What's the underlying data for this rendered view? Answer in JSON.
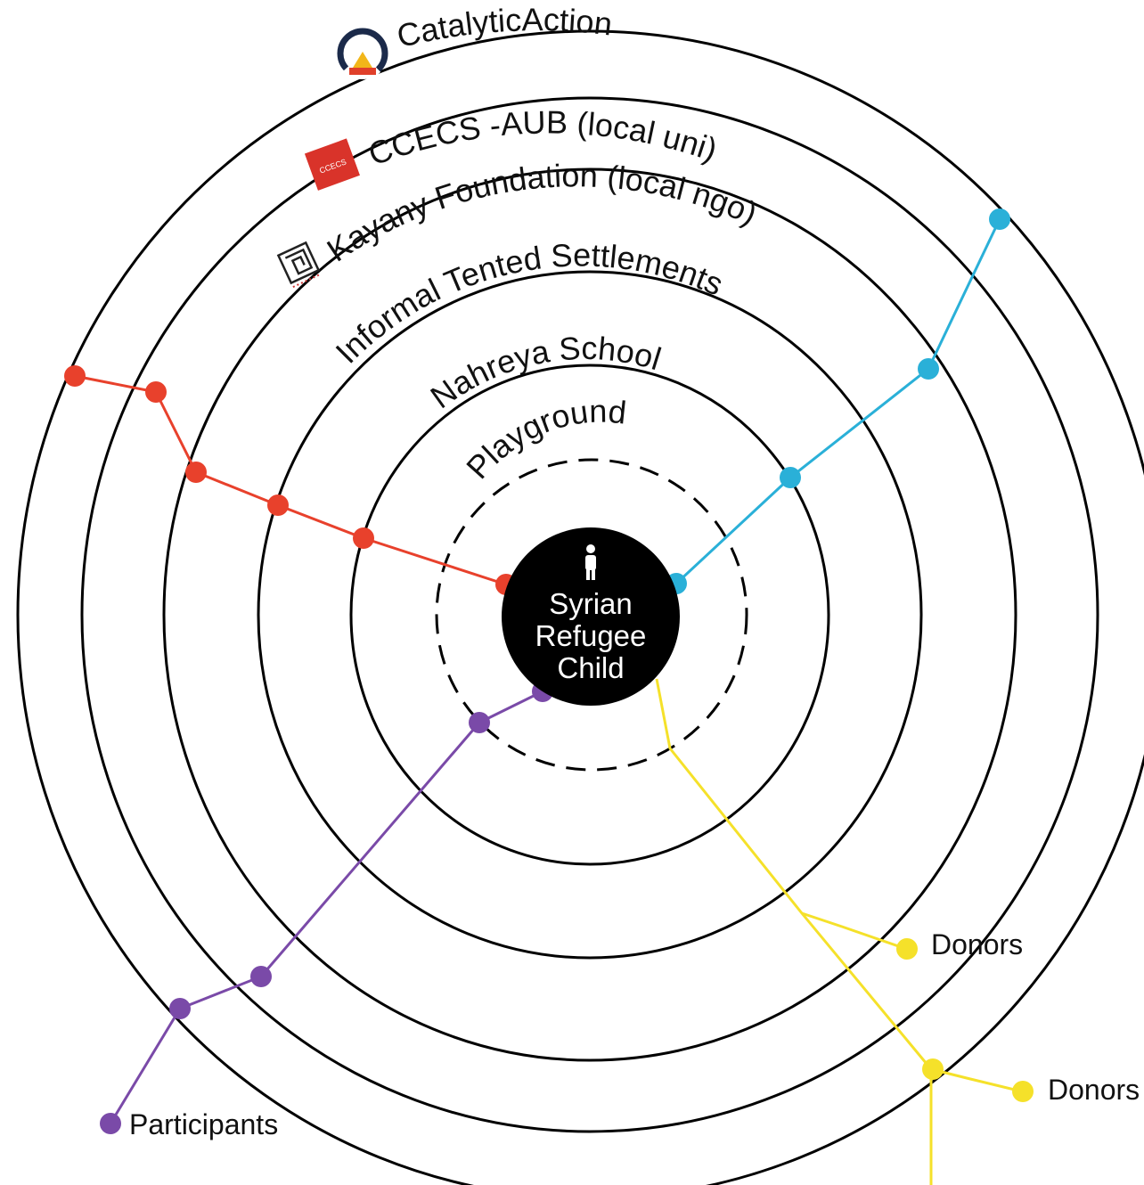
{
  "rings": [
    {
      "name": "catalytic-action",
      "label": "CatalyticAction"
    },
    {
      "name": "ccecs-aub",
      "label": "CCECS -AUB (local uni)"
    },
    {
      "name": "kayany-foundation",
      "label": "Kayany Foundation (local ngo)"
    },
    {
      "name": "informal-tented-settlements",
      "label": "Informal Tented Settlements"
    },
    {
      "name": "nahreya-school",
      "label": "Nahreya School"
    },
    {
      "name": "playground",
      "label": "Playground"
    }
  ],
  "logos": {
    "ccecs": "CCECS"
  },
  "center": {
    "line1": "Syrian",
    "line2": "Refugee",
    "line3": "Child"
  },
  "labels": {
    "participants": "Participants",
    "donors_1": "Donors",
    "donors_2": "Donors"
  },
  "colors": {
    "red_route": "#e8412c",
    "blue_route": "#2ab0d8",
    "purple_route": "#7a4aa8",
    "yellow_route": "#f5e12a",
    "center_fill": "#000000"
  }
}
